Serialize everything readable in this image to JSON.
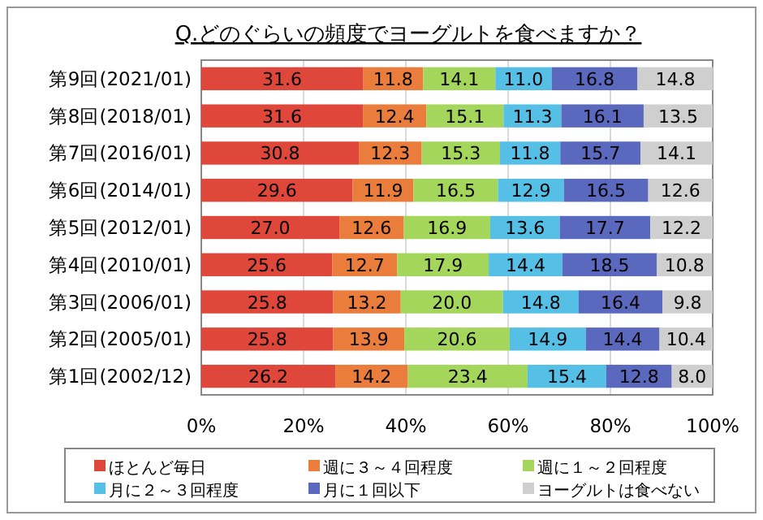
{
  "chart_data": {
    "type": "bar",
    "orientation": "horizontal",
    "stacked": true,
    "title": "Q.どのぐらいの頻度でヨーグルトを食べますか？",
    "categories": [
      "第9回(2021/01)",
      "第8回(2018/01)",
      "第7回(2016/01)",
      "第6回(2014/01)",
      "第5回(2012/01)",
      "第4回(2010/01)",
      "第3回(2006/01)",
      "第2回(2005/01)",
      "第1回(2002/12)"
    ],
    "series": [
      {
        "name": "ほとんど毎日",
        "color": "#e0473b",
        "values": [
          31.6,
          31.6,
          30.8,
          29.6,
          27.0,
          25.6,
          25.8,
          25.8,
          26.2
        ],
        "value_labels": [
          "31.6",
          "31.6",
          "30.8",
          "29.6",
          "27.0",
          "25.6",
          "25.8",
          "25.8",
          "26.2"
        ]
      },
      {
        "name": "週に３～４回程度",
        "color": "#ea7d3c",
        "values": [
          11.8,
          12.4,
          12.3,
          11.9,
          12.6,
          12.7,
          13.2,
          13.9,
          14.2
        ],
        "value_labels": [
          "11.8",
          "12.4",
          "12.3",
          "11.9",
          "12.6",
          "12.7",
          "13.2",
          "13.9",
          "14.2"
        ]
      },
      {
        "name": "週に１～２回程度",
        "color": "#a3d65a",
        "values": [
          14.1,
          15.1,
          15.3,
          16.5,
          16.9,
          17.9,
          20.0,
          20.6,
          23.4
        ],
        "value_labels": [
          "14.1",
          "15.1",
          "15.3",
          "16.5",
          "16.9",
          "17.9",
          "20.0",
          "20.6",
          "23.4"
        ]
      },
      {
        "name": "月に２～３回程度",
        "color": "#55bfe6",
        "values": [
          11.0,
          11.3,
          11.8,
          12.9,
          13.6,
          14.4,
          14.8,
          14.9,
          15.4
        ],
        "value_labels": [
          "11.0",
          "11.3",
          "11.8",
          "12.9",
          "13.6",
          "14.4",
          "14.8",
          "14.9",
          "15.4"
        ]
      },
      {
        "name": "月に１回以下",
        "color": "#5a68bd",
        "values": [
          16.8,
          16.1,
          15.7,
          16.5,
          17.7,
          18.5,
          16.4,
          14.4,
          12.8
        ],
        "value_labels": [
          "16.8",
          "16.1",
          "15.7",
          "16.5",
          "17.7",
          "18.5",
          "16.4",
          "14.4",
          "12.8"
        ]
      },
      {
        "name": "ヨーグルトは食べない",
        "color": "#cfcfcf",
        "values": [
          14.8,
          13.5,
          14.1,
          12.6,
          12.2,
          10.8,
          9.8,
          10.4,
          8.0
        ],
        "value_labels": [
          "14.8",
          "13.5",
          "14.1",
          "12.6",
          "12.2",
          "10.8",
          "9.8",
          "10.4",
          "8.0"
        ]
      }
    ],
    "xlim": [
      0,
      100
    ],
    "xticks": [
      {
        "value": 0,
        "label": "0%"
      },
      {
        "value": 20,
        "label": "20%"
      },
      {
        "value": 40,
        "label": "40%"
      },
      {
        "value": 60,
        "label": "60%"
      },
      {
        "value": 80,
        "label": "80%"
      },
      {
        "value": 100,
        "label": "100%"
      }
    ],
    "grid": "x",
    "legend": "bottom"
  }
}
